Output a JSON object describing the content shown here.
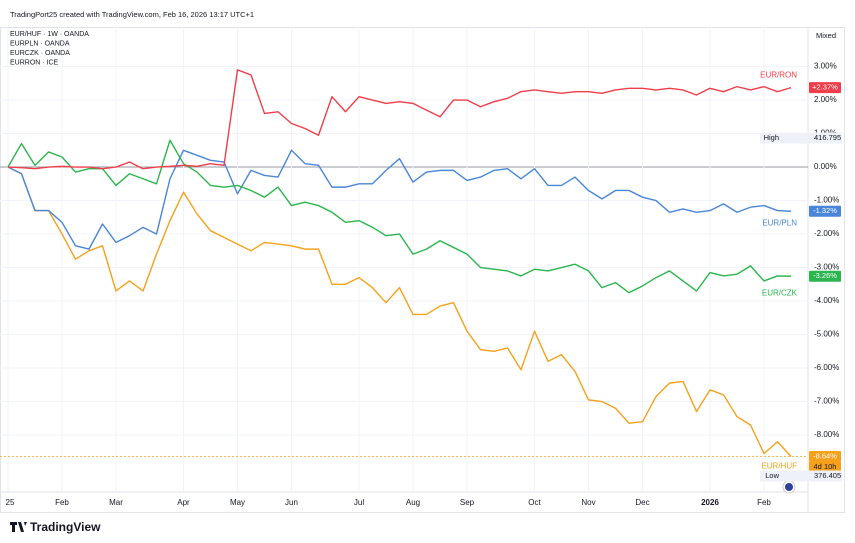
{
  "header": "TradingPort25 created with TradingView.com, Feb 16, 2026 13:17 UTC+1",
  "scale_mode": "Mixed",
  "watermark": "TradingView",
  "chart_data": {
    "type": "line",
    "categories": [
      "25",
      null,
      null,
      null,
      "Feb",
      null,
      null,
      null,
      "Mar",
      null,
      null,
      null,
      null,
      "Apr",
      null,
      null,
      null,
      "May",
      null,
      null,
      null,
      "Jun",
      null,
      null,
      null,
      null,
      "Jul",
      null,
      null,
      null,
      "Aug",
      null,
      null,
      null,
      "Sep",
      null,
      null,
      null,
      null,
      "Oct",
      null,
      null,
      null,
      "Nov",
      null,
      null,
      null,
      "Dec",
      null,
      null,
      null,
      null,
      "2026",
      null,
      null,
      null,
      "Feb",
      null,
      null
    ],
    "bold_categories": [
      "2026"
    ],
    "ylim": [
      -9.7,
      4.18
    ],
    "yticks": [
      {
        "value": 3,
        "label": "3.00%"
      },
      {
        "value": 2,
        "label": "2.00%"
      },
      {
        "value": 1,
        "label": "1.00%"
      },
      {
        "value": 0,
        "label": "0.00%"
      },
      {
        "value": -1,
        "label": "-1.00%"
      },
      {
        "value": -2,
        "label": "-2.00%"
      },
      {
        "value": -3,
        "label": "-3.00%"
      },
      {
        "value": -4,
        "label": "-4.00%"
      },
      {
        "value": -5,
        "label": "-5.00%"
      },
      {
        "value": -6,
        "label": "-6.00%"
      },
      {
        "value": -7,
        "label": "-7.00%"
      },
      {
        "value": -8,
        "label": "-8.00%"
      }
    ],
    "grid": true,
    "zero_line": 0,
    "series": [
      {
        "name": "EUR/HUF",
        "legend": "EUR/HUF · 1W · OANDA",
        "color": "#f5a11c",
        "last_label": "-8.64%",
        "countdown": "4d 10h",
        "values": [
          0,
          -0.2,
          -1.3,
          -1.3,
          -2.0,
          -2.75,
          -2.5,
          -2.35,
          -3.7,
          -3.4,
          -3.7,
          -2.6,
          -1.6,
          -0.75,
          -1.4,
          -1.9,
          -2.1,
          -2.3,
          -2.5,
          -2.25,
          -2.3,
          -2.35,
          -2.45,
          -2.45,
          -3.5,
          -3.5,
          -3.3,
          -3.6,
          -4.05,
          -3.6,
          -4.4,
          -4.4,
          -4.15,
          -4.05,
          -4.9,
          -5.45,
          -5.5,
          -5.4,
          -6.05,
          -4.9,
          -5.8,
          -5.6,
          -6.1,
          -6.95,
          -7.0,
          -7.2,
          -7.65,
          -7.6,
          -6.85,
          -6.45,
          -6.4,
          -7.3,
          -6.65,
          -6.8,
          -7.45,
          -7.7,
          -8.55,
          -8.2,
          -8.64
        ]
      },
      {
        "name": "EUR/PLN",
        "legend": "EURPLN · OANDA",
        "color": "#4a86d8",
        "last_label": "-1.32%",
        "values": [
          0,
          -0.2,
          -1.3,
          -1.3,
          -1.65,
          -2.35,
          -2.45,
          -1.7,
          -2.25,
          -2.05,
          -1.8,
          -2.0,
          -0.35,
          0.5,
          0.35,
          0.2,
          0.15,
          -0.8,
          -0.1,
          -0.25,
          -0.3,
          0.5,
          0.1,
          0.05,
          -0.6,
          -0.6,
          -0.5,
          -0.5,
          -0.1,
          0.25,
          -0.45,
          -0.15,
          -0.1,
          -0.1,
          -0.4,
          -0.3,
          -0.1,
          -0.05,
          -0.35,
          -0.05,
          -0.55,
          -0.55,
          -0.3,
          -0.7,
          -0.95,
          -0.7,
          -0.7,
          -0.9,
          -1.0,
          -1.35,
          -1.25,
          -1.35,
          -1.3,
          -1.1,
          -1.35,
          -1.2,
          -1.15,
          -1.3,
          -1.32
        ]
      },
      {
        "name": "EUR/CZK",
        "legend": "EURCZK · OANDA",
        "color": "#2bb54e",
        "last_label": "-3.26%",
        "values": [
          0,
          0.7,
          0.05,
          0.45,
          0.3,
          -0.15,
          -0.05,
          -0.05,
          -0.55,
          -0.2,
          -0.35,
          -0.5,
          0.8,
          0.1,
          -0.15,
          -0.55,
          -0.6,
          -0.55,
          -0.7,
          -0.9,
          -0.6,
          -1.15,
          -1.05,
          -1.15,
          -1.35,
          -1.65,
          -1.6,
          -1.8,
          -2.05,
          -2.0,
          -2.6,
          -2.45,
          -2.2,
          -2.4,
          -2.6,
          -3.0,
          -3.05,
          -3.1,
          -3.25,
          -3.05,
          -3.1,
          -3.0,
          -2.9,
          -3.1,
          -3.6,
          -3.45,
          -3.75,
          -3.55,
          -3.3,
          -3.1,
          -3.4,
          -3.7,
          -3.15,
          -3.25,
          -3.2,
          -2.95,
          -3.4,
          -3.25,
          -3.26
        ]
      },
      {
        "name": "EUR/RON",
        "legend": "EURRON · ICE",
        "color": "#ef3e4a",
        "last_label": "+2.37%",
        "values": [
          0,
          -0.02,
          -0.05,
          0.0,
          0.02,
          0.0,
          0.0,
          -0.05,
          0.0,
          0.15,
          -0.05,
          0.0,
          0.02,
          0.05,
          0.02,
          0.1,
          0.05,
          2.9,
          2.75,
          1.6,
          1.65,
          1.3,
          1.15,
          0.95,
          2.1,
          1.65,
          2.1,
          2.0,
          1.9,
          1.95,
          1.9,
          1.7,
          1.5,
          2.0,
          2.0,
          1.8,
          1.95,
          2.05,
          2.25,
          2.3,
          2.25,
          2.2,
          2.25,
          2.25,
          2.2,
          2.3,
          2.35,
          2.35,
          2.3,
          2.35,
          2.3,
          2.15,
          2.35,
          2.25,
          2.4,
          2.3,
          2.4,
          2.25,
          2.37
        ]
      }
    ],
    "high": {
      "label": "High",
      "value": 416.795
    },
    "low": {
      "label": "Low",
      "value": 376.405
    }
  }
}
